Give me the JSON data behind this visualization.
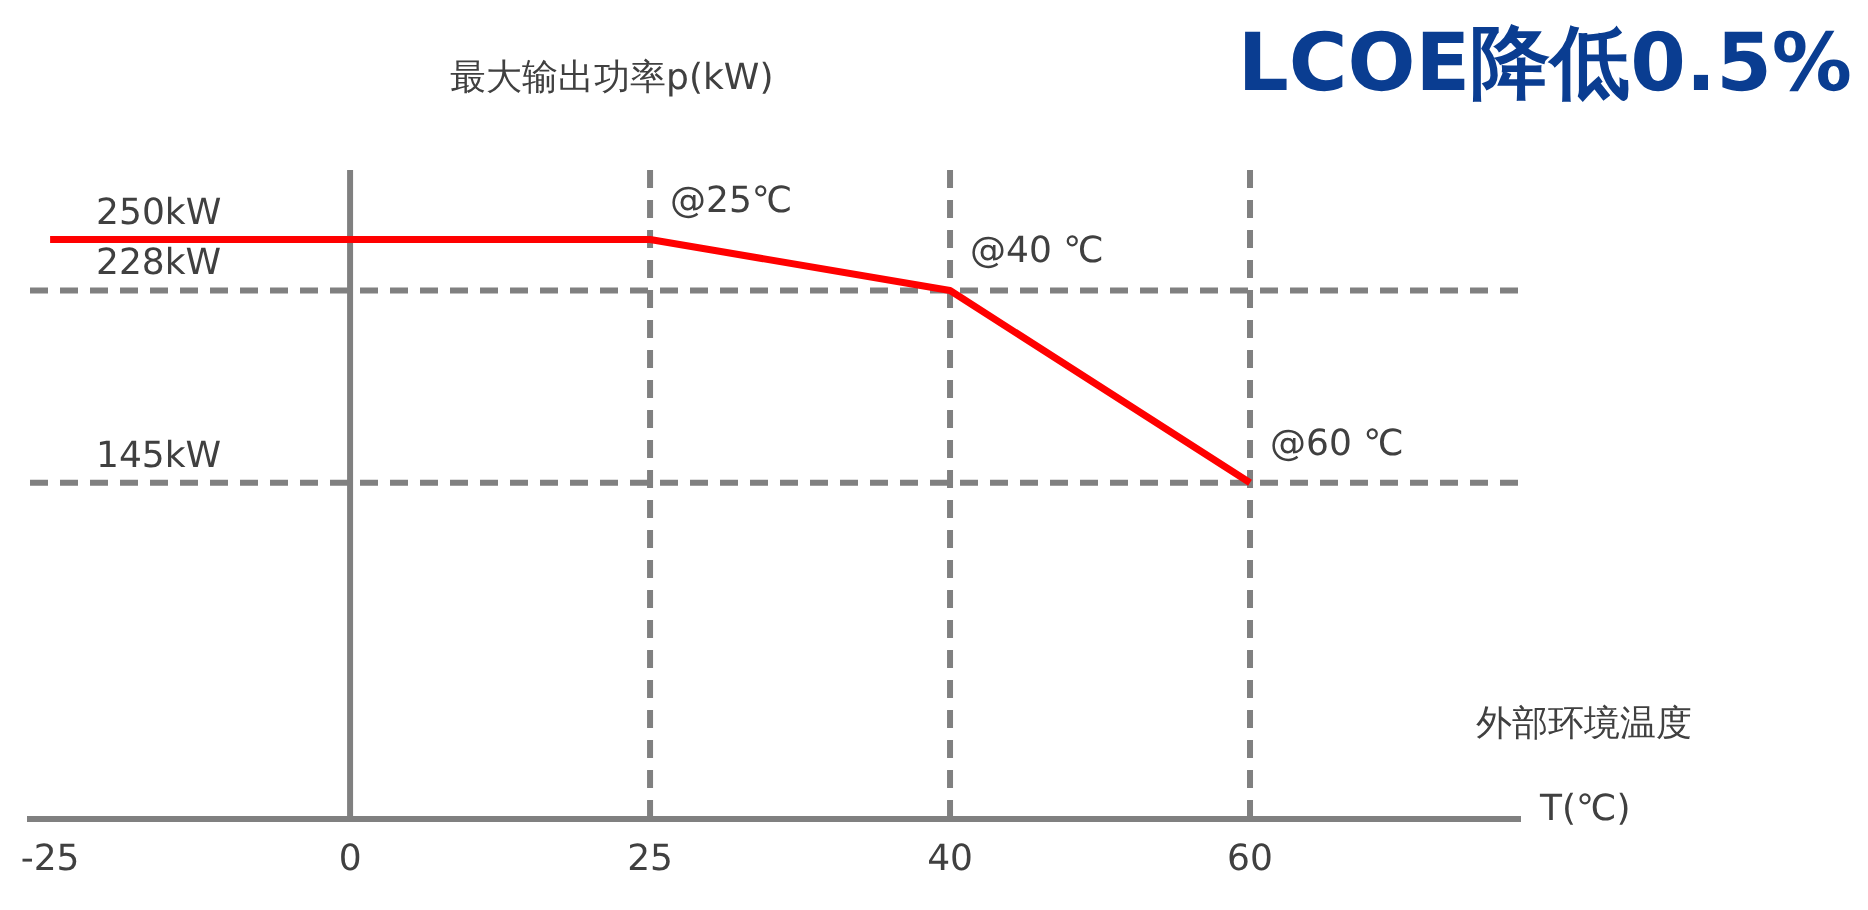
{
  "chart_data": {
    "type": "line",
    "title": "LCOE降低0.5%",
    "ylabel": "最大输出功率p(kW)",
    "xlabel": "T(℃)",
    "annotations": [
      "外部环境温度",
      {
        "text": "250kW",
        "x": "-25",
        "y": 250
      }
    ],
    "categories": [
      "-25",
      "0",
      "25",
      "40",
      "60"
    ],
    "series": [
      {
        "color": "#ff0000",
        "values": [
          250,
          250,
          250,
          228,
          145
        ]
      }
    ],
    "ylim": [
      0,
      280
    ],
    "tick_labels": "x",
    "grid": false,
    "legend": false,
    "marker": "none",
    "line_style": "solid",
    "ref_lines": [
      {
        "axis": "x",
        "value": "0",
        "color": "#808080",
        "line_style": "solid"
      },
      {
        "axis": "x",
        "value": "25",
        "label": "@25℃",
        "color": "#808080",
        "line_style": "dashed"
      },
      {
        "axis": "x",
        "value": "40",
        "label": "@40 ℃",
        "color": "#808080",
        "line_style": "dashed"
      },
      {
        "axis": "x",
        "value": "60",
        "label": "@60 ℃",
        "color": "#808080",
        "line_style": "dashed"
      },
      {
        "axis": "y",
        "value": 228,
        "label": "228kW",
        "color": "#808080",
        "line_style": "dashed"
      },
      {
        "axis": "y",
        "value": 145,
        "label": "145kW",
        "color": "#808080",
        "line_style": "dashed"
      }
    ]
  }
}
